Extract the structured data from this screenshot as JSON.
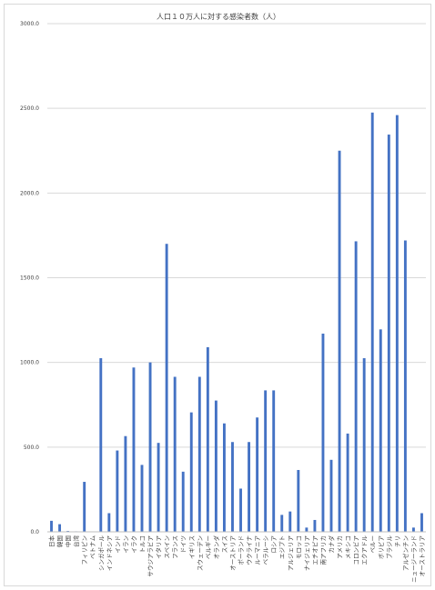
{
  "chart_data": {
    "type": "bar",
    "title": "人口１０万人に対する感染者数（人）",
    "xlabel": "",
    "ylabel": "",
    "ylim": [
      0,
      3000
    ],
    "yticks": [
      "0.0",
      "500.0",
      "1000.0",
      "1500.0",
      "2000.0",
      "2500.0",
      "3000.0"
    ],
    "grid": true,
    "legend": "none",
    "colors": {
      "bar": "#4472c4",
      "grid": "#d9d9d9",
      "text": "#404040"
    },
    "categories": [
      "日本",
      "韓国",
      "中国",
      "台湾",
      "フィリピン",
      "ベトナム",
      "シンガポール",
      "インドネシア",
      "インド",
      "イラン",
      "イラク",
      "トルコ",
      "サウジアラビア",
      "イタリア",
      "スペイン",
      "フランス",
      "ドイツ",
      "イギリス",
      "スウェーデン",
      "ベルギー",
      "オランダ",
      "スイス",
      "オーストリア",
      "ポーランド",
      "ウクライナ",
      "ルーマニア",
      "ベラルーシ",
      "ロシア",
      "エジプト",
      "アルジェリア",
      "モロッコ",
      "ナイジェリア",
      "エチオピア",
      "南アフリカ",
      "カナダ",
      "アメリカ",
      "メキシコ",
      "コロンビア",
      "エクアドル",
      "ペルー",
      "ボリビア",
      "ブラジル",
      "チリ",
      "アルゼンチン",
      "ニュージーランド",
      "オーストラリア"
    ],
    "values": [
      65,
      45,
      5,
      3,
      295,
      2,
      1025,
      110,
      480,
      565,
      970,
      395,
      1000,
      525,
      1700,
      915,
      355,
      705,
      915,
      1090,
      775,
      640,
      530,
      255,
      530,
      675,
      835,
      835,
      100,
      120,
      365,
      25,
      70,
      1170,
      425,
      2250,
      580,
      1715,
      1025,
      2475,
      1195,
      2345,
      2460,
      1720,
      25,
      110
    ]
  }
}
